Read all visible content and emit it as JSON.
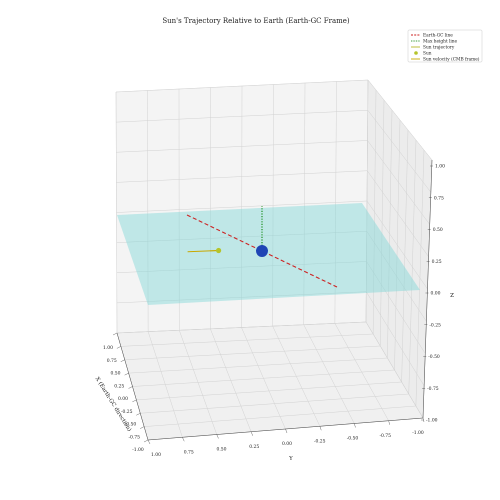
{
  "chart_data": {
    "type": "3d-line",
    "title": "Sun's Trajectory Relative to Earth (Earth-GC Frame)",
    "xlabel": "X (Earth-GC direction)",
    "ylabel": "Y",
    "zlabel": "Z",
    "xlim": [
      -1.0,
      1.0
    ],
    "ylim": [
      -1.0,
      1.0
    ],
    "zlim": [
      -1.0,
      1.0
    ],
    "x_ticks": [
      "1.00",
      "0.75",
      "0.50",
      "0.25",
      "0.00",
      "-0.25",
      "-0.50",
      "-0.75",
      "-1.00"
    ],
    "y_ticks": [
      "1.00",
      "0.75",
      "0.50",
      "0.25",
      "0.00",
      "-0.25",
      "-0.50",
      "-0.75",
      "-1.00"
    ],
    "z_ticks": [
      "1.00",
      "0.75",
      "0.50",
      "0.25",
      "0.00",
      "-0.25",
      "-0.50",
      "-0.75",
      "-1.00"
    ],
    "grid": true,
    "legend_position": "top-right",
    "colors": {
      "earth_gc_line": "#cc2222",
      "max_height_line": "#118811",
      "sun_trajectory": "#b5b82a",
      "sun": "#b5c42a",
      "sun_velocity": "#c9a800",
      "earth": "#1f45b5",
      "galactic_plane": "#7fd6d6"
    },
    "series": [
      {
        "name": "Earth-GC line",
        "style": "dashed",
        "points": [
          [
            1.0,
            0,
            0
          ],
          [
            -1.0,
            0,
            0
          ]
        ]
      },
      {
        "name": "Max height line",
        "style": "dotted",
        "points": [
          [
            0,
            0,
            0
          ],
          [
            0,
            0,
            1.0
          ]
        ]
      },
      {
        "name": "Sun trajectory",
        "style": "solid",
        "points": [
          [
            0,
            0.35,
            0.05
          ],
          [
            0,
            0.42,
            0.05
          ]
        ]
      },
      {
        "name": "Sun",
        "style": "marker",
        "points": [
          [
            0,
            0.35,
            0.05
          ]
        ]
      },
      {
        "name": "Sun velocity (CMB frame)",
        "style": "solid",
        "points": [
          [
            0,
            0.35,
            0.05
          ],
          [
            0,
            0.6,
            0.05
          ]
        ]
      }
    ],
    "earth_point": [
      0,
      0,
      0
    ],
    "galactic_plane_z": 0.0
  }
}
